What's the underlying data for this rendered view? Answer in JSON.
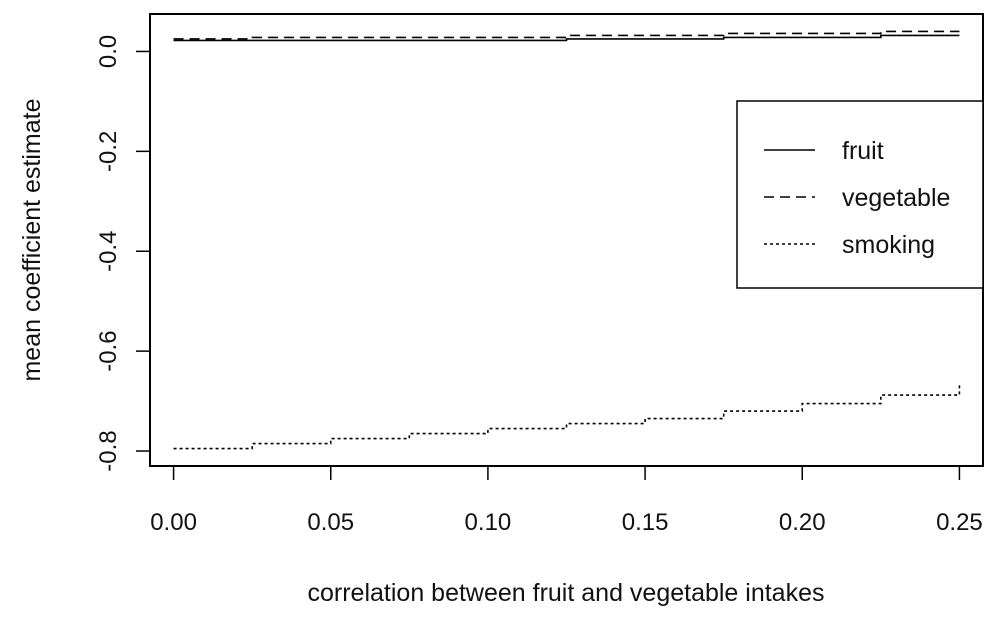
{
  "chart_data": {
    "type": "line",
    "title": "",
    "xlabel": "correlation between fruit and vegetable intakes",
    "ylabel": "mean coefficient estimate",
    "xlim": [
      -0.0075,
      0.2575
    ],
    "ylim": [
      -0.83,
      0.075
    ],
    "x_ticks": [
      0.0,
      0.05,
      0.1,
      0.15,
      0.2,
      0.25
    ],
    "x_tick_labels": [
      "0.00",
      "0.05",
      "0.10",
      "0.15",
      "0.20",
      "0.25"
    ],
    "y_ticks": [
      0.0,
      -0.2,
      -0.4,
      -0.6,
      -0.8
    ],
    "y_tick_labels": [
      "0.0",
      "-0.2",
      "-0.4",
      "-0.6",
      "-0.8"
    ],
    "grid": false,
    "legend_position": "right",
    "x": [
      0.0,
      0.025,
      0.05,
      0.075,
      0.1,
      0.125,
      0.15,
      0.175,
      0.2,
      0.225,
      0.25
    ],
    "series": [
      {
        "name": "fruit",
        "style": "solid",
        "values": [
          0.022,
          0.022,
          0.022,
          0.022,
          0.022,
          0.025,
          0.025,
          0.028,
          0.028,
          0.032,
          0.032
        ]
      },
      {
        "name": "vegetable",
        "style": "dashed",
        "values": [
          0.025,
          0.028,
          0.028,
          0.028,
          0.028,
          0.032,
          0.032,
          0.036,
          0.036,
          0.04,
          0.04
        ]
      },
      {
        "name": "smoking",
        "style": "dotted",
        "values": [
          -0.795,
          -0.785,
          -0.775,
          -0.765,
          -0.755,
          -0.745,
          -0.735,
          -0.72,
          -0.705,
          -0.688,
          -0.668
        ]
      }
    ]
  }
}
